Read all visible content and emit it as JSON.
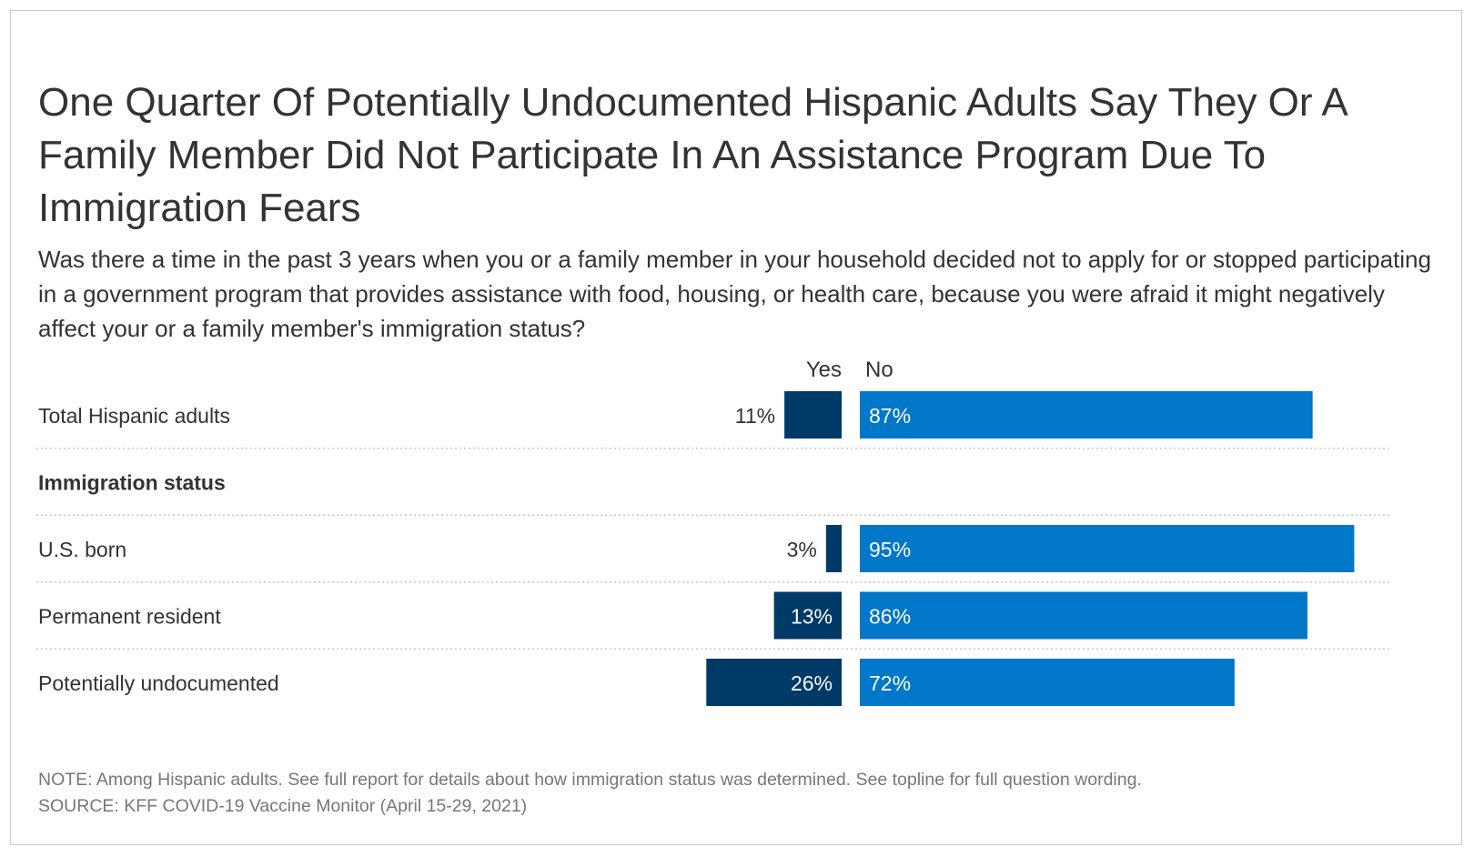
{
  "title": "One Quarter Of Potentially Undocumented Hispanic Adults Say They Or A Family Member Did Not Participate In An Assistance Program Due To Immigration Fears",
  "subtitle": "Was there a time in the past 3 years when you or a family member in your household decided not to apply for or stopped participating in a government program that provides assistance with food, housing, or health care, because you were afraid it might negatively affect your or a family member's immigration status?",
  "chart_data": {
    "type": "bar",
    "orientation": "horizontal",
    "layout": "diverging",
    "series": [
      {
        "name": "Yes",
        "color": "#003a66"
      },
      {
        "name": "No",
        "color": "#0077c8"
      }
    ],
    "rows": [
      {
        "kind": "data",
        "label": "Total Hispanic adults",
        "yes": 11,
        "no": 87
      },
      {
        "kind": "header",
        "label": "Immigration status"
      },
      {
        "kind": "data",
        "label": "U.S. born",
        "yes": 3,
        "no": 95
      },
      {
        "kind": "data",
        "label": "Permanent resident",
        "yes": 13,
        "no": 86
      },
      {
        "kind": "data",
        "label": "Potentially undocumented",
        "yes": 26,
        "no": 72
      }
    ],
    "value_suffix": "%",
    "grid": false
  },
  "notes": {
    "note": "NOTE: Among Hispanic adults. See full report for details about how immigration status was determined. See topline for full question wording.",
    "source": "SOURCE: KFF COVID-19 Vaccine Monitor (April 15-29, 2021)"
  }
}
